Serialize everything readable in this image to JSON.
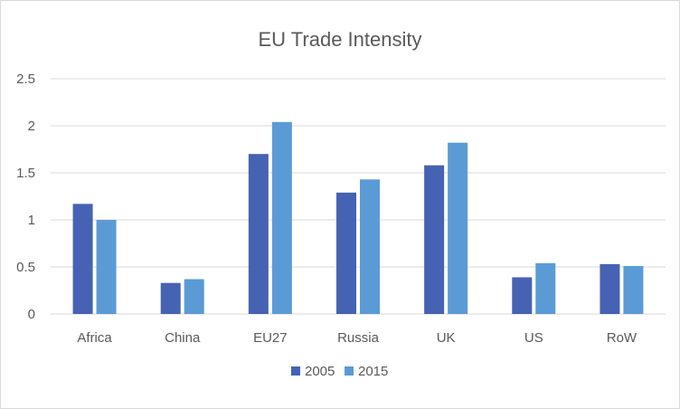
{
  "chart_data": {
    "type": "bar",
    "title": "EU Trade Intensity",
    "xlabel": "",
    "ylabel": "",
    "categories": [
      "Africa",
      "China",
      "EU27",
      "Russia",
      "UK",
      "US",
      "RoW"
    ],
    "series": [
      {
        "name": "2005",
        "color": "#4662b2",
        "values": [
          1.17,
          0.33,
          1.7,
          1.29,
          1.58,
          0.39,
          0.53
        ]
      },
      {
        "name": "2015",
        "color": "#5b9bd5",
        "values": [
          1.0,
          0.37,
          2.04,
          1.43,
          1.82,
          0.54,
          0.51
        ]
      }
    ],
    "ylim": [
      0,
      2.5
    ],
    "yticks": [
      "0",
      "0.5",
      "1",
      "1.5",
      "2",
      "2.5"
    ],
    "ytick_values": [
      0,
      0.5,
      1,
      1.5,
      2,
      2.5
    ],
    "grid": true,
    "legend_position": "bottom"
  }
}
